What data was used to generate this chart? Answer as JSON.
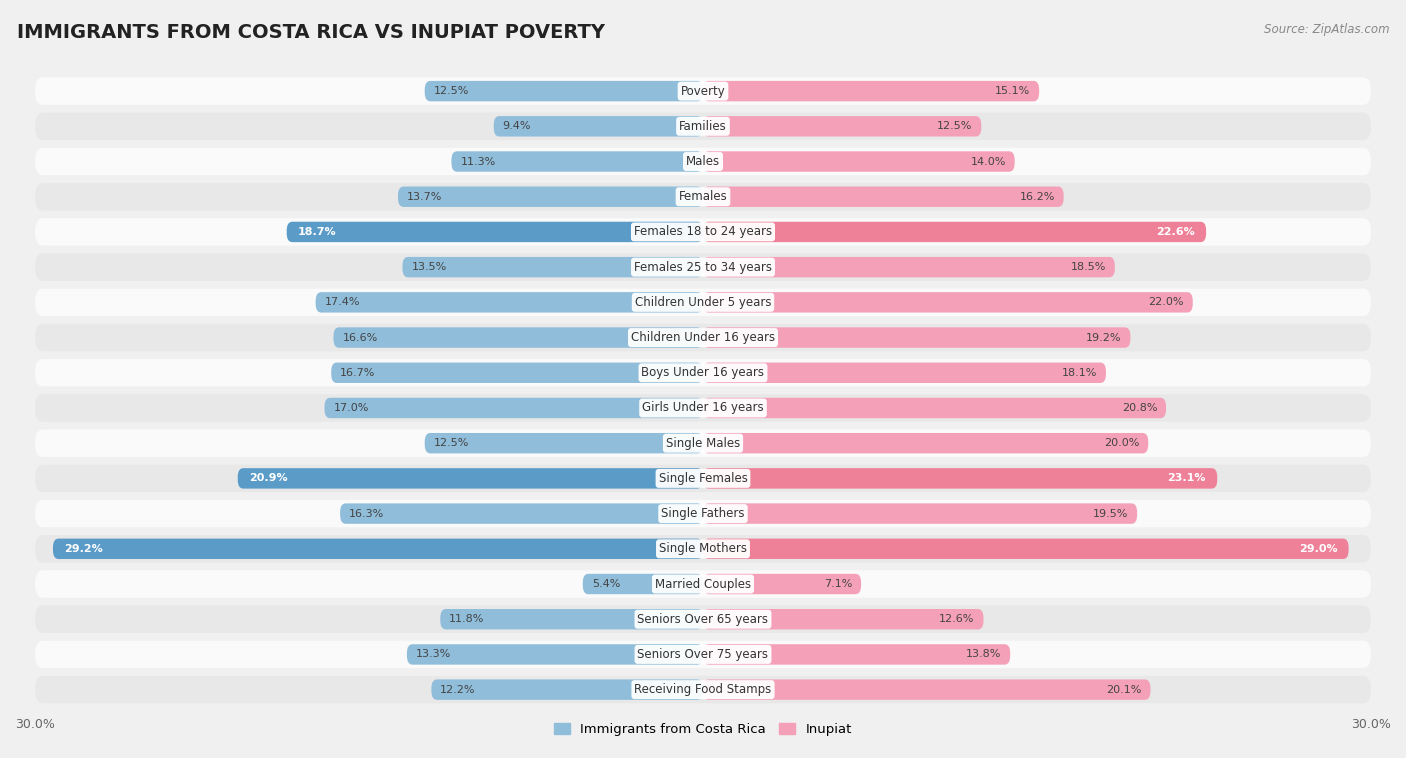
{
  "title": "IMMIGRANTS FROM COSTA RICA VS INUPIAT POVERTY",
  "source": "Source: ZipAtlas.com",
  "categories": [
    "Poverty",
    "Families",
    "Males",
    "Females",
    "Females 18 to 24 years",
    "Females 25 to 34 years",
    "Children Under 5 years",
    "Children Under 16 years",
    "Boys Under 16 years",
    "Girls Under 16 years",
    "Single Males",
    "Single Females",
    "Single Fathers",
    "Single Mothers",
    "Married Couples",
    "Seniors Over 65 years",
    "Seniors Over 75 years",
    "Receiving Food Stamps"
  ],
  "left_values": [
    12.5,
    9.4,
    11.3,
    13.7,
    18.7,
    13.5,
    17.4,
    16.6,
    16.7,
    17.0,
    12.5,
    20.9,
    16.3,
    29.2,
    5.4,
    11.8,
    13.3,
    12.2
  ],
  "right_values": [
    15.1,
    12.5,
    14.0,
    16.2,
    22.6,
    18.5,
    22.0,
    19.2,
    18.1,
    20.8,
    20.0,
    23.1,
    19.5,
    29.0,
    7.1,
    12.6,
    13.8,
    20.1
  ],
  "left_color": "#8fbdda",
  "right_color": "#f4a0b8",
  "highlight_left_color": "#5b9bc8",
  "highlight_right_color": "#ee8098",
  "axis_max": 30.0,
  "background_color": "#f0f0f0",
  "row_bg_light": "#fafafa",
  "row_bg_dark": "#e8e8e8",
  "legend_left": "Immigrants from Costa Rica",
  "legend_right": "Inupiat",
  "title_fontsize": 14,
  "label_fontsize": 8.5,
  "value_fontsize": 8.0,
  "highlight_rows": [
    4,
    11,
    13
  ],
  "white_label_rows": [
    4,
    11,
    13
  ]
}
